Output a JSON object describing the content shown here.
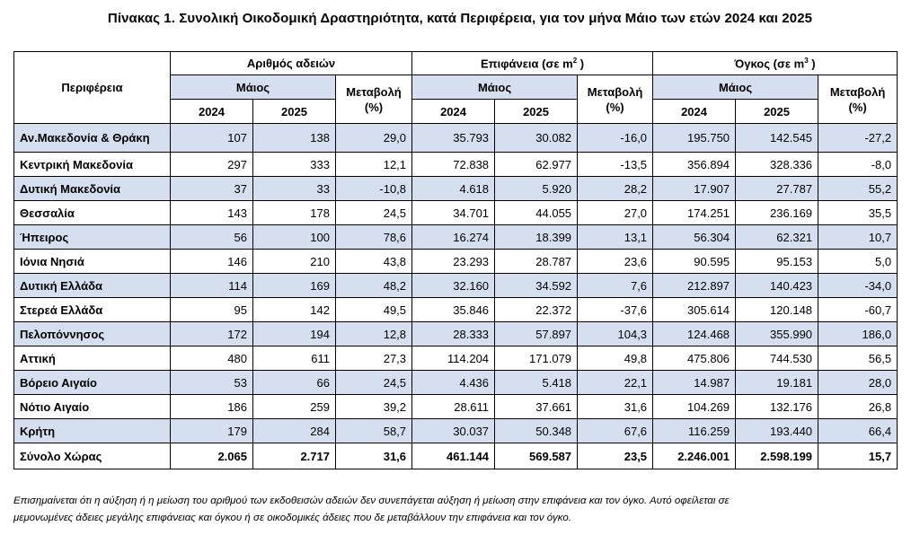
{
  "title": "Πίνακας 1. Συνολική Οικοδομική Δραστηριότητα, κατά  Περιφέρεια, για τον μήνα Μάιο των ετών 2024 και 2025",
  "header": {
    "region": "Περιφέρεια",
    "groups": [
      {
        "label": "Αριθμός αδειών",
        "unit_sup": ""
      },
      {
        "label": "Επιφάνεια (σε m",
        "unit_sup": "2",
        "label_end": " )"
      },
      {
        "label": "Όγκος (σε m",
        "unit_sup": "3",
        "label_end": " )"
      }
    ],
    "month": "Μάιος",
    "change_line1": "Μεταβολή",
    "change_line2": "(%)",
    "year1": "2024",
    "year2": "2025"
  },
  "rows": [
    {
      "region": "Αν.Μακεδονία & Θράκη",
      "v": [
        "107",
        "138",
        "29,0",
        "35.793",
        "30.082",
        "-16,0",
        "195.750",
        "142.545",
        "-27,2"
      ]
    },
    {
      "region": "Κεντρική Μακεδονία",
      "v": [
        "297",
        "333",
        "12,1",
        "72.838",
        "62.977",
        "-13,5",
        "356.894",
        "328.336",
        "-8,0"
      ]
    },
    {
      "region": "Δυτική Μακεδονία",
      "v": [
        "37",
        "33",
        "-10,8",
        "4.618",
        "5.920",
        "28,2",
        "17.907",
        "27.787",
        "55,2"
      ]
    },
    {
      "region": "Θεσσαλία",
      "v": [
        "143",
        "178",
        "24,5",
        "34.701",
        "44.055",
        "27,0",
        "174.251",
        "236.169",
        "35,5"
      ]
    },
    {
      "region": "Ήπειρος",
      "v": [
        "56",
        "100",
        "78,6",
        "16.274",
        "18.399",
        "13,1",
        "56.304",
        "62.321",
        "10,7"
      ]
    },
    {
      "region": "Ιόνια Νησιά",
      "v": [
        "146",
        "210",
        "43,8",
        "23.293",
        "28.787",
        "23,6",
        "90.595",
        "95.153",
        "5,0"
      ]
    },
    {
      "region": "Δυτική Ελλάδα",
      "v": [
        "114",
        "169",
        "48,2",
        "32.160",
        "34.592",
        "7,6",
        "212.897",
        "140.423",
        "-34,0"
      ]
    },
    {
      "region": "Στερεά Ελλάδα",
      "v": [
        "95",
        "142",
        "49,5",
        "35.846",
        "22.372",
        "-37,6",
        "305.614",
        "120.148",
        "-60,7"
      ]
    },
    {
      "region": "Πελοπόννησος",
      "v": [
        "172",
        "194",
        "12,8",
        "28.333",
        "57.897",
        "104,3",
        "124.468",
        "355.990",
        "186,0"
      ]
    },
    {
      "region": "Αττική",
      "v": [
        "480",
        "611",
        "27,3",
        "114.204",
        "171.079",
        "49,8",
        "475.806",
        "744.530",
        "56,5"
      ]
    },
    {
      "region": "Βόρειο Αιγαίο",
      "v": [
        "53",
        "66",
        "24,5",
        "4.436",
        "5.418",
        "22,1",
        "14.987",
        "19.181",
        "28,0"
      ]
    },
    {
      "region": "Νότιο Αιγαίο",
      "v": [
        "186",
        "259",
        "39,2",
        "28.611",
        "37.661",
        "31,6",
        "104.269",
        "132.176",
        "26,8"
      ]
    },
    {
      "region": "Κρήτη",
      "v": [
        "179",
        "284",
        "58,7",
        "30.037",
        "50.348",
        "67,6",
        "116.259",
        "193.440",
        "66,4"
      ]
    }
  ],
  "total": {
    "region": "Σύνολο Χώρας",
    "v": [
      "2.065",
      "2.717",
      "31,6",
      "461.144",
      "569.587",
      "23,5",
      "2.246.001",
      "2.598.199",
      "15,7"
    ]
  },
  "footnote_line1": "Επισημαίνεται ότι η αύξηση ή η μείωση του αριθμού των εκδοθεισών αδειών δεν συνεπάγεται αύξηση ή μείωση στην επιφάνεια και τον όγκο. Αυτό οφείλεται σε",
  "footnote_line2": "μεμονωμένες άδειες μεγάλης επιφάνειας και όγκου ή σε οικοδομικές άδειες που δε μεταβάλλουν την επιφάνεια και τον όγκο.",
  "colors": {
    "row_shade": "#d6dff0",
    "border": "#000000"
  }
}
